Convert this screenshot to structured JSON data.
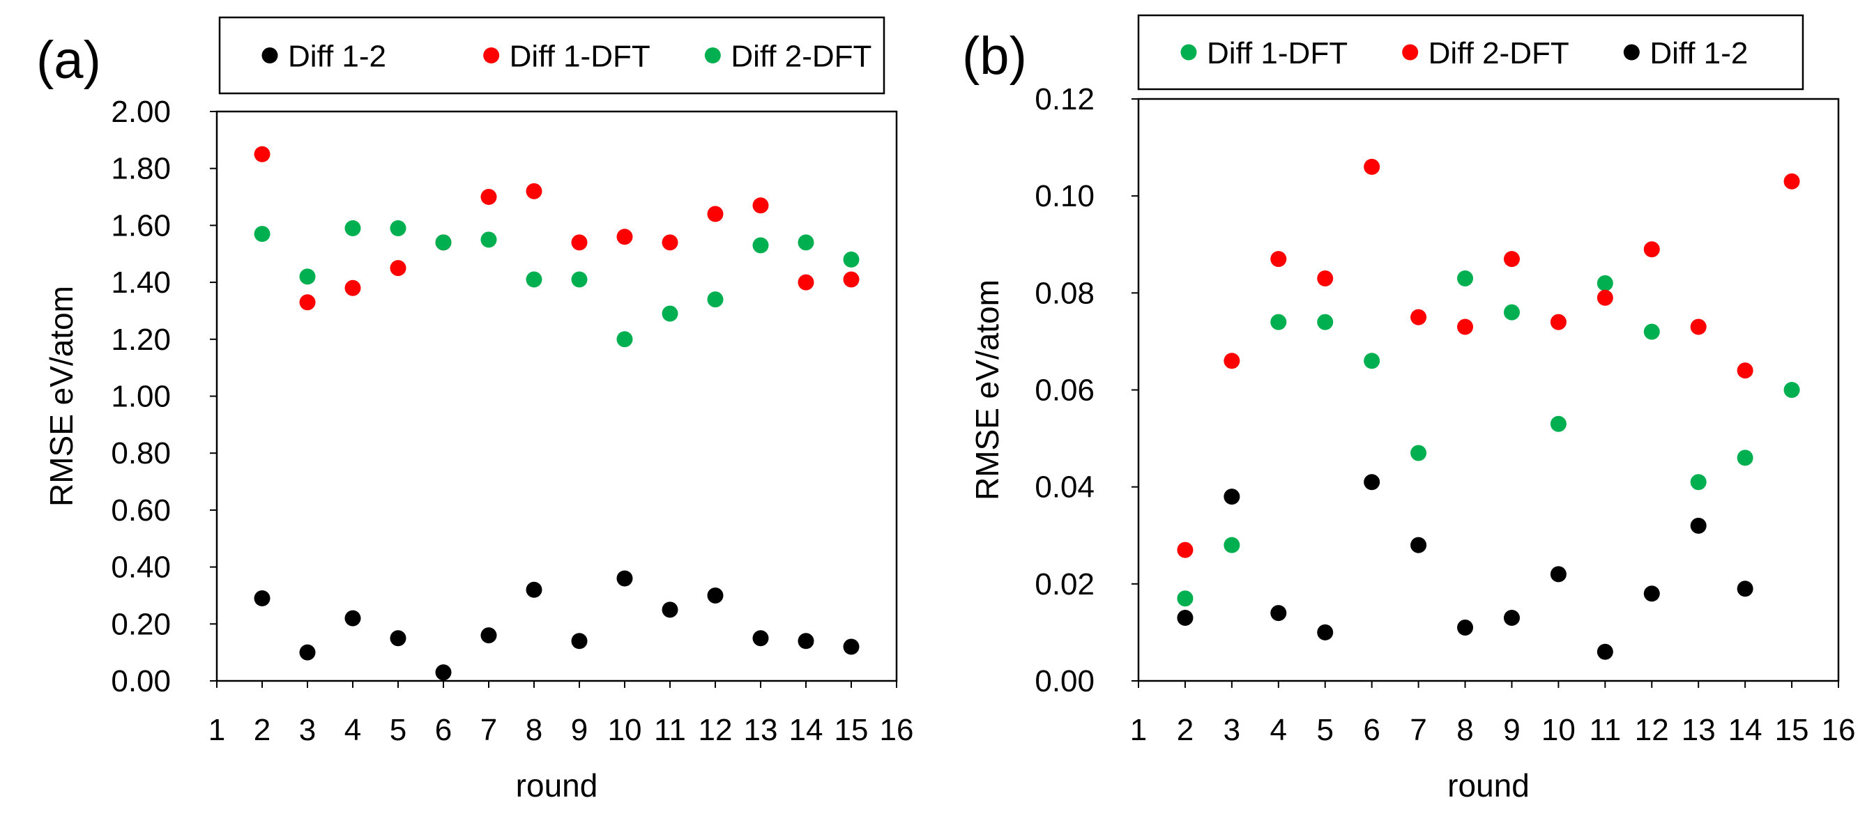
{
  "colors": {
    "black": "#000000",
    "red": "#ff0000",
    "green": "#00b050"
  },
  "chart_data": [
    {
      "type": "scatter",
      "panel_label": "(a)",
      "xlabel": "round",
      "ylabel": "RMSE eV/atom",
      "xlim": [
        1,
        16
      ],
      "ylim": [
        0,
        2.0
      ],
      "x_ticks": [
        "1",
        "2",
        "3",
        "4",
        "5",
        "6",
        "7",
        "8",
        "9",
        "10",
        "11",
        "12",
        "13",
        "14",
        "15",
        "16"
      ],
      "y_ticks": [
        "0.00",
        "0.20",
        "0.40",
        "0.60",
        "0.80",
        "1.00",
        "1.20",
        "1.40",
        "1.60",
        "1.80",
        "2.00"
      ],
      "x_tick_values": [
        1,
        2,
        3,
        4,
        5,
        6,
        7,
        8,
        9,
        10,
        11,
        12,
        13,
        14,
        15,
        16
      ],
      "y_tick_values": [
        0,
        0.2,
        0.4,
        0.6,
        0.8,
        1.0,
        1.2,
        1.4,
        1.6,
        1.8,
        2.0
      ],
      "legend_position": "top",
      "legend": [
        "Diff 1-2",
        "Diff 1-DFT",
        "Diff 2-DFT"
      ],
      "x": [
        2,
        3,
        4,
        5,
        6,
        7,
        8,
        9,
        10,
        11,
        12,
        13,
        14,
        15
      ],
      "series": [
        {
          "name": "Diff 1-2",
          "color": "black",
          "values": [
            0.29,
            0.1,
            0.22,
            0.15,
            0.03,
            0.16,
            0.32,
            0.14,
            0.36,
            0.25,
            0.3,
            0.15,
            0.14,
            0.12
          ]
        },
        {
          "name": "Diff 1-DFT",
          "color": "red",
          "values": [
            1.85,
            1.33,
            1.38,
            1.45,
            1.54,
            1.7,
            1.72,
            1.54,
            1.56,
            1.54,
            1.64,
            1.67,
            1.4,
            1.41
          ]
        },
        {
          "name": "Diff 2-DFT",
          "color": "green",
          "values": [
            1.57,
            1.42,
            1.59,
            1.59,
            1.54,
            1.55,
            1.41,
            1.41,
            1.2,
            1.29,
            1.34,
            1.53,
            1.54,
            1.48
          ]
        }
      ]
    },
    {
      "type": "scatter",
      "panel_label": "(b)",
      "xlabel": "round",
      "ylabel": "RMSE eV/atom",
      "xlim": [
        1,
        16
      ],
      "ylim": [
        0,
        0.12
      ],
      "x_ticks": [
        "1",
        "2",
        "3",
        "4",
        "5",
        "6",
        "7",
        "8",
        "9",
        "10",
        "11",
        "12",
        "13",
        "14",
        "15",
        "16"
      ],
      "y_ticks": [
        "0.00",
        "0.02",
        "0.04",
        "0.06",
        "0.08",
        "0.10",
        "0.12"
      ],
      "x_tick_values": [
        1,
        2,
        3,
        4,
        5,
        6,
        7,
        8,
        9,
        10,
        11,
        12,
        13,
        14,
        15,
        16
      ],
      "y_tick_values": [
        0,
        0.02,
        0.04,
        0.06,
        0.08,
        0.1,
        0.12
      ],
      "legend_position": "top",
      "legend": [
        "Diff 1-DFT",
        "Diff 2-DFT",
        "Diff 1-2"
      ],
      "x": [
        2,
        3,
        4,
        5,
        6,
        7,
        8,
        9,
        10,
        11,
        12,
        13,
        14,
        15
      ],
      "series": [
        {
          "name": "Diff 1-DFT",
          "color": "green",
          "values": [
            0.017,
            0.028,
            0.074,
            0.074,
            0.066,
            0.047,
            0.083,
            0.076,
            0.053,
            0.082,
            0.072,
            0.041,
            0.046,
            0.06
          ]
        },
        {
          "name": "Diff 2-DFT",
          "color": "red",
          "values": [
            0.027,
            0.066,
            0.087,
            0.083,
            0.106,
            0.075,
            0.073,
            0.087,
            0.074,
            0.079,
            0.089,
            0.073,
            0.064,
            0.103
          ]
        },
        {
          "name": "Diff 1-2",
          "color": "black",
          "values": [
            0.013,
            0.038,
            0.014,
            0.01,
            0.041,
            0.028,
            0.011,
            0.013,
            0.022,
            0.006,
            0.018,
            0.032,
            0.019,
            null
          ]
        }
      ]
    }
  ]
}
